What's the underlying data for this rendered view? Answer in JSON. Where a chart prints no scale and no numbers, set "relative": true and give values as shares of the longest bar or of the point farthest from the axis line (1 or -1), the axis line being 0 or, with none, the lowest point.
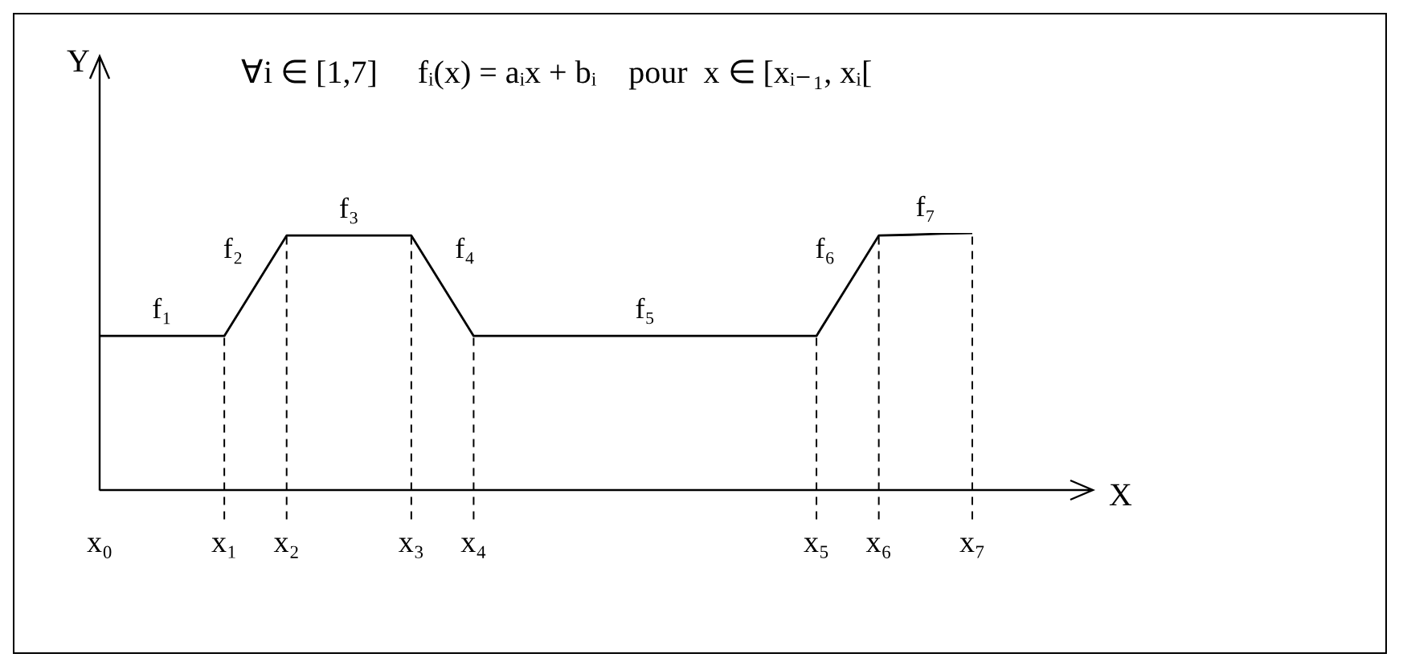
{
  "chart_data": {
    "type": "line",
    "title": "∀i ∈ [1,7]     fᵢ(x) = aᵢx + bᵢ    pour  x ∈ [xᵢ₋₁, xᵢ[",
    "xlabel": "X",
    "ylabel": "Y",
    "relative": true,
    "marker": "none",
    "grid": false,
    "legend": false,
    "categories": [
      "x₀",
      null,
      null,
      null,
      "x₁",
      null,
      "x₂",
      null,
      null,
      null,
      "x₃",
      null,
      "x₄",
      null,
      null,
      null,
      null,
      null,
      null,
      null,
      null,
      null,
      null,
      "x₅",
      null,
      "x₆",
      null,
      null,
      "x₇"
    ],
    "series": [
      {
        "color": "#000000",
        "values": [
          0.6,
          0.6,
          0.6,
          0.6,
          0.6,
          0.795,
          0.99,
          0.99,
          0.99,
          0.99,
          0.99,
          0.795,
          0.6,
          0.6,
          0.6,
          0.6,
          0.6,
          0.6,
          0.6,
          0.6,
          0.6,
          0.6,
          0.6,
          0.6,
          0.795,
          0.99,
          0.993,
          0.997,
          1
        ]
      }
    ],
    "ref_lines": [
      {
        "axis": "x",
        "value": "x₁",
        "line_style": "dashed"
      },
      {
        "axis": "x",
        "value": "x₂",
        "line_style": "dashed"
      },
      {
        "axis": "x",
        "value": "x₃",
        "line_style": "dashed"
      },
      {
        "axis": "x",
        "value": "x₄",
        "line_style": "dashed"
      },
      {
        "axis": "x",
        "value": "x₅",
        "line_style": "dashed"
      },
      {
        "axis": "x",
        "value": "x₆",
        "line_style": "dashed"
      },
      {
        "axis": "x",
        "value": "x₇",
        "line_style": "dashed"
      }
    ],
    "annotations": [
      "f₁",
      "f₂",
      "f₃",
      "f₄",
      "f₅",
      "f₆",
      "f₇"
    ]
  }
}
